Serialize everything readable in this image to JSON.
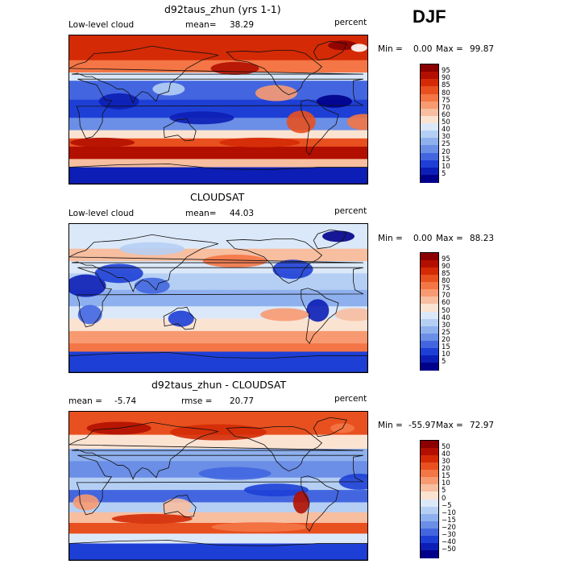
{
  "season": "DJF",
  "panels": [
    {
      "title": "d92taus_zhun (yrs 1-1)",
      "left_label": "Low-level cloud",
      "mean_label": "mean=",
      "mean_value": "38.29",
      "right_label": "percent",
      "min_label": "Min =",
      "min_value": "0.00",
      "max_label": "Max =",
      "max_value": "99.87",
      "kind": "field"
    },
    {
      "title": "CLOUDSAT",
      "left_label": "Low-level cloud",
      "mean_label": "mean=",
      "mean_value": "44.03",
      "right_label": "percent",
      "min_label": "Min =",
      "min_value": "0.00",
      "max_label": "Max =",
      "max_value": "88.23",
      "kind": "field"
    },
    {
      "title": "d92taus_zhun - CLOUDSAT",
      "left_label": "mean =",
      "left_value": "-5.74",
      "mean_label": "rmse =",
      "mean_value": "20.77",
      "right_label": "percent",
      "min_label": "Min =",
      "min_value": "-55.97",
      "max_label": "Max =",
      "max_value": "72.97",
      "kind": "diff"
    }
  ],
  "colorbars": {
    "field": {
      "labels": [
        "95",
        "90",
        "85",
        "80",
        "75",
        "70",
        "60",
        "50",
        "40",
        "30",
        "25",
        "20",
        "15",
        "10",
        "5"
      ],
      "colors": [
        "#8b0000",
        "#b30f00",
        "#d42a05",
        "#e8501f",
        "#f47545",
        "#f89a71",
        "#f7bea0",
        "#fbe3d2",
        "#dbe8f9",
        "#b5cff4",
        "#8fb0ee",
        "#6b8ee6",
        "#4366e0",
        "#1e3fd6",
        "#0c1eb5",
        "#00008b"
      ]
    },
    "diff": {
      "labels": [
        "50",
        "40",
        "30",
        "20",
        "15",
        "10",
        "5",
        "0",
        "−5",
        "−10",
        "−15",
        "−20",
        "−30",
        "−40",
        "−50"
      ],
      "colors": [
        "#8b0000",
        "#b30f00",
        "#d42a05",
        "#e8501f",
        "#f47545",
        "#f89a71",
        "#f7bea0",
        "#fbe3d2",
        "#dbe8f9",
        "#b5cff4",
        "#8fb0ee",
        "#6b8ee6",
        "#4366e0",
        "#1e3fd6",
        "#0c1eb5",
        "#00008b"
      ]
    }
  },
  "chart_data": [
    {
      "type": "heatmap",
      "title": "d92taus_zhun (yrs 1-1)",
      "variable": "Low-level cloud",
      "units": "percent",
      "mean": 38.29,
      "min": 0.0,
      "max": 99.87,
      "contour_levels": [
        5,
        10,
        15,
        20,
        25,
        30,
        40,
        50,
        60,
        70,
        75,
        80,
        85,
        90,
        95
      ]
    },
    {
      "type": "heatmap",
      "title": "CLOUDSAT",
      "variable": "Low-level cloud",
      "units": "percent",
      "mean": 44.03,
      "min": 0.0,
      "max": 88.23,
      "contour_levels": [
        5,
        10,
        15,
        20,
        25,
        30,
        40,
        50,
        60,
        70,
        75,
        80,
        85,
        90,
        95
      ]
    },
    {
      "type": "heatmap",
      "title": "d92taus_zhun - CLOUDSAT",
      "units": "percent",
      "mean": -5.74,
      "rmse": 20.77,
      "min": -55.97,
      "max": 72.97,
      "contour_levels": [
        -50,
        -40,
        -30,
        -20,
        -15,
        -10,
        -5,
        0,
        5,
        10,
        15,
        20,
        30,
        40,
        50
      ]
    }
  ]
}
